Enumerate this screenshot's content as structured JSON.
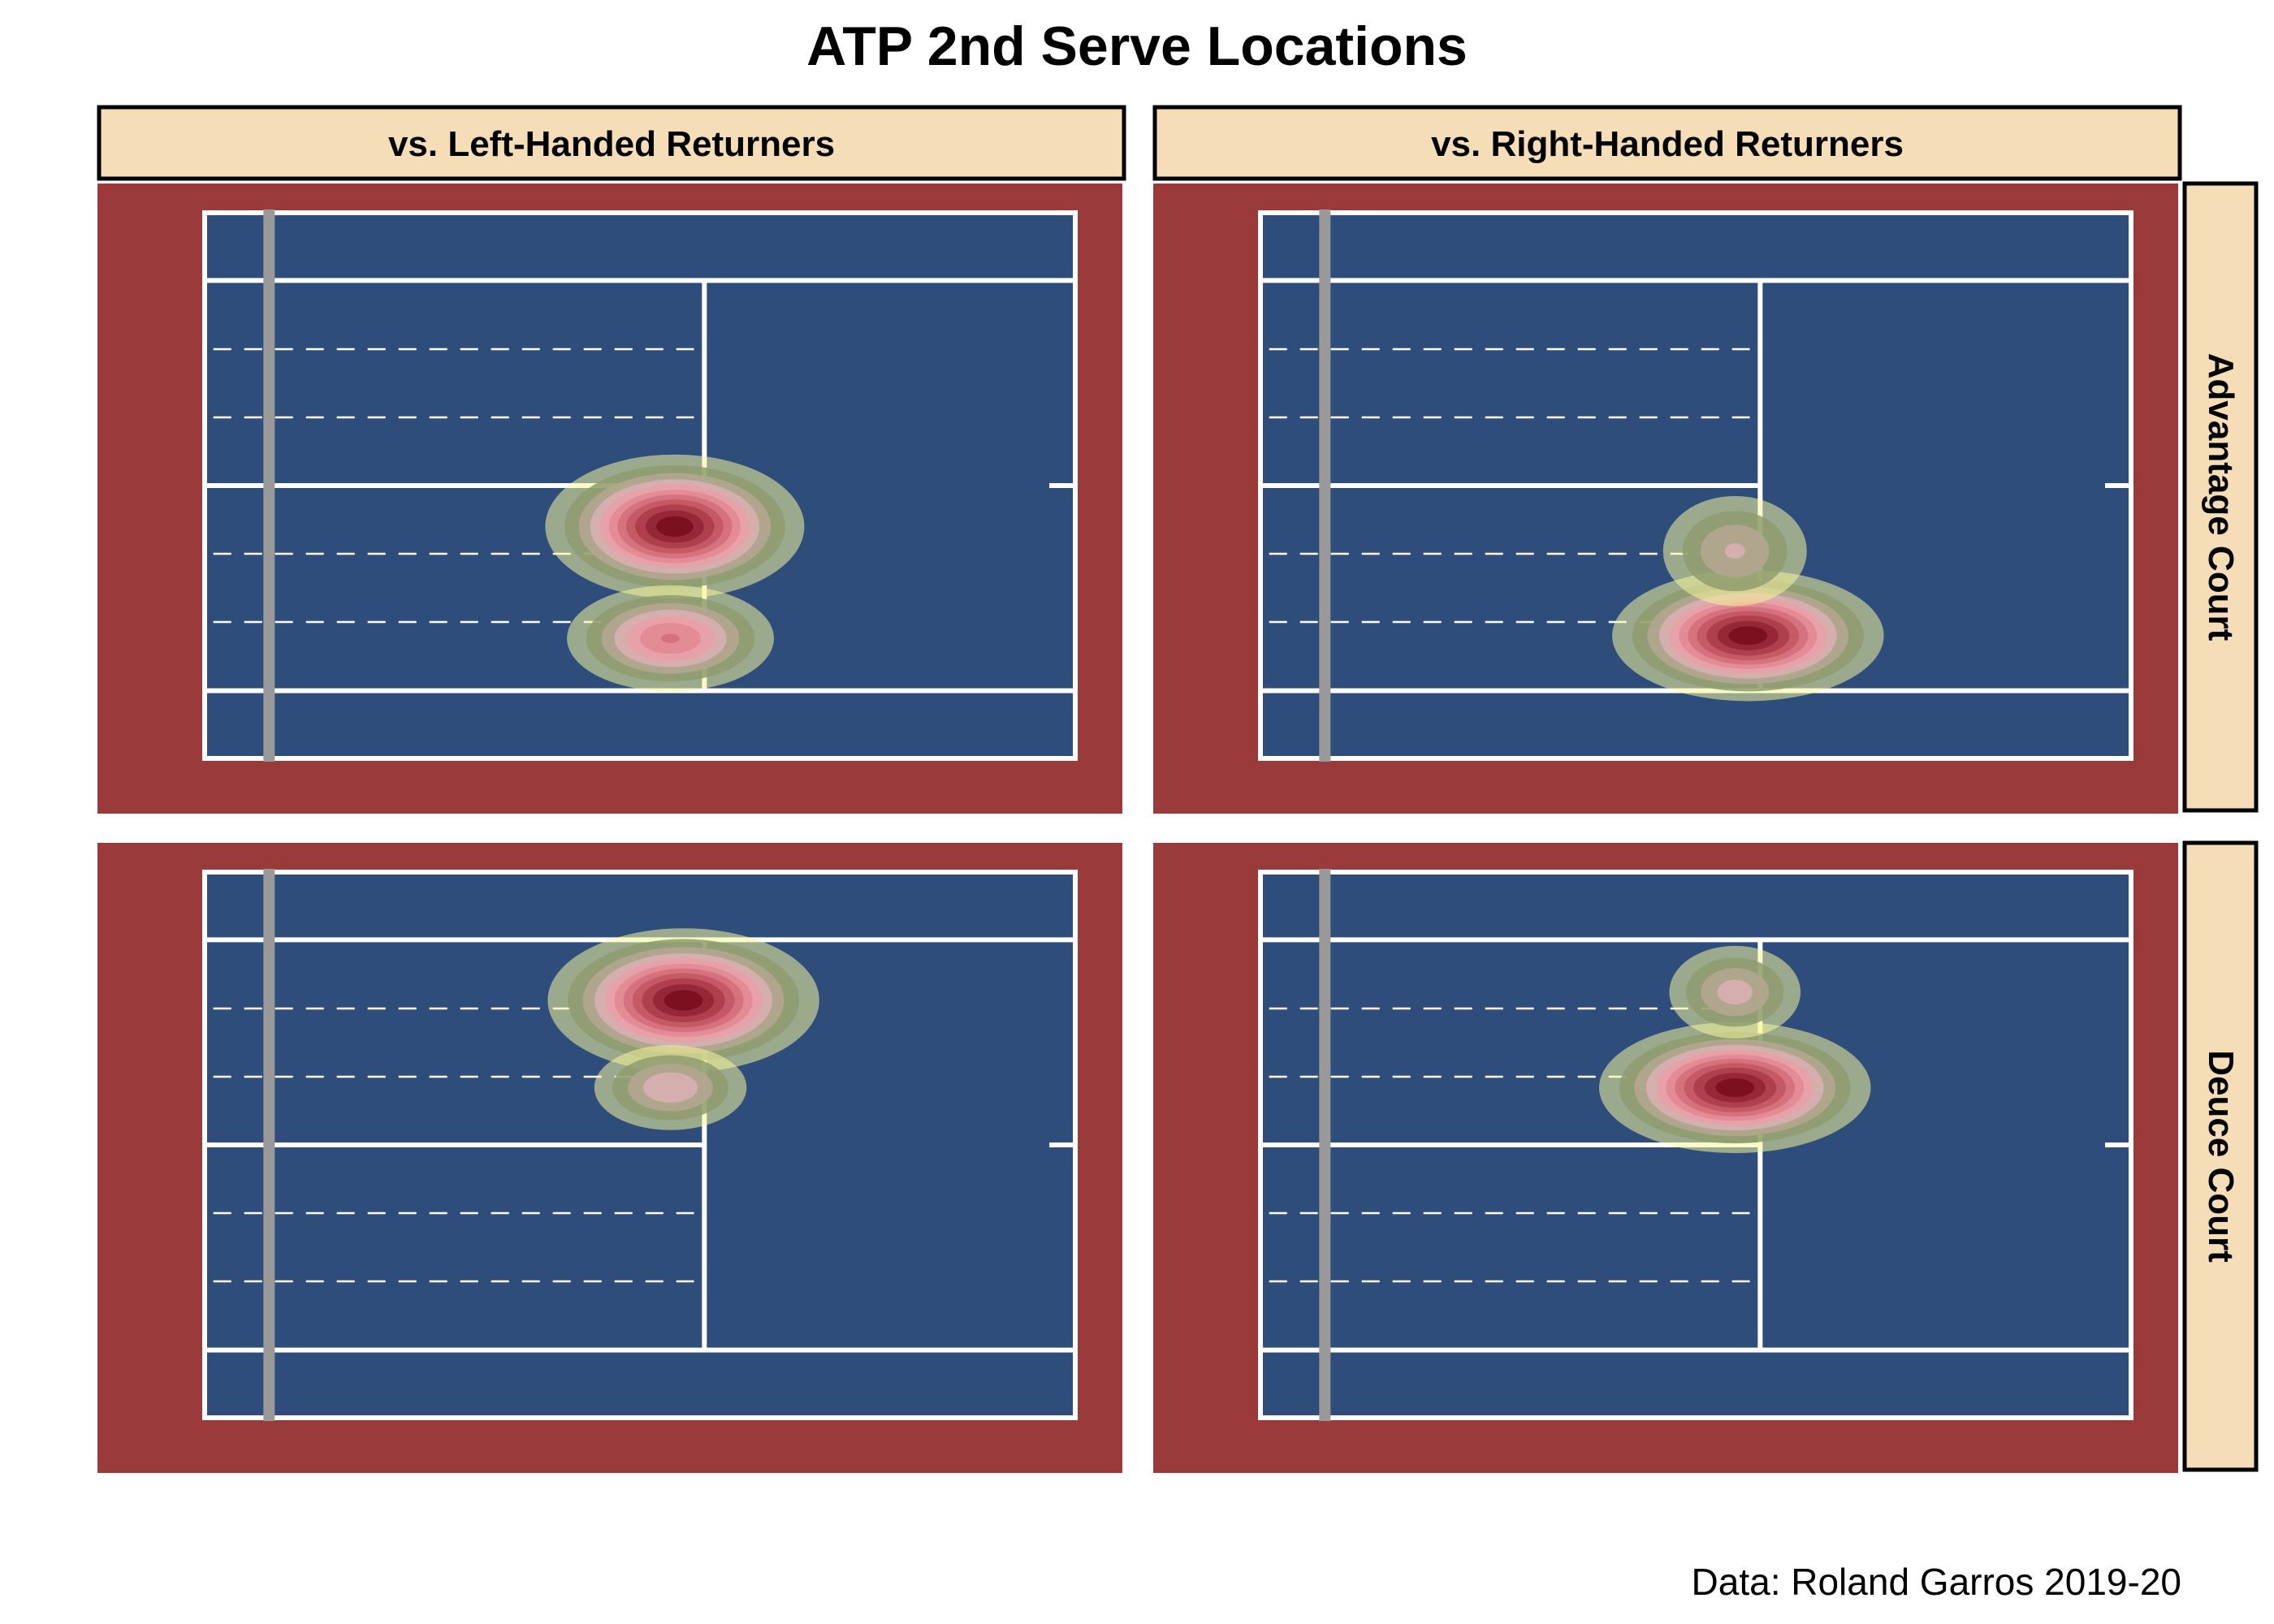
{
  "chart_data": {
    "type": "heatmap",
    "title": "ATP 2nd Serve Locations",
    "caption": "Data: Roland Garros 2019-20",
    "columns": [
      "vs. Left-Handed Returners",
      "vs. Right-Handed Returners"
    ],
    "rows": [
      "Advantage Court",
      "Deuce Court"
    ],
    "colors": {
      "background": "#ffffff",
      "surround": "#9b3a3a",
      "court": "#2e4d7a",
      "lines": "#ffffff",
      "net": "#999999",
      "strip_fill": "#f5deb7",
      "strip_border": "#000000",
      "density_ramp": [
        "#f5f59a",
        "#8f9c6e",
        "#b2a690",
        "#d9b0b0",
        "#e9a0a8",
        "#e28994",
        "#d46f7a",
        "#c35662",
        "#ad3c4a",
        "#942533",
        "#7a0e1c"
      ]
    },
    "panels": [
      {
        "row": "Advantage Court",
        "column": "vs. Left-Handed Returners",
        "clusters": [
          {
            "x": 0.54,
            "y": 0.575,
            "sx": 0.062,
            "sy": 0.055,
            "weight": 1.0
          },
          {
            "x": 0.535,
            "y": 0.78,
            "sx": 0.055,
            "sy": 0.045,
            "weight": 0.62
          }
        ]
      },
      {
        "row": "Advantage Court",
        "column": "vs. Right-Handed Returners",
        "clusters": [
          {
            "x": 0.56,
            "y": 0.775,
            "sx": 0.065,
            "sy": 0.05,
            "weight": 1.0
          },
          {
            "x": 0.545,
            "y": 0.62,
            "sx": 0.045,
            "sy": 0.055,
            "weight": 0.35
          }
        ]
      },
      {
        "row": "Deuce Court",
        "column": "vs. Left-Handed Returners",
        "clusters": [
          {
            "x": 0.55,
            "y": 0.235,
            "sx": 0.065,
            "sy": 0.055,
            "weight": 1.0
          },
          {
            "x": 0.535,
            "y": 0.395,
            "sx": 0.045,
            "sy": 0.04,
            "weight": 0.42
          }
        ]
      },
      {
        "row": "Deuce Court",
        "column": "vs. Right-Handed Returners",
        "clusters": [
          {
            "x": 0.545,
            "y": 0.395,
            "sx": 0.065,
            "sy": 0.05,
            "weight": 1.0
          },
          {
            "x": 0.545,
            "y": 0.22,
            "sx": 0.04,
            "sy": 0.045,
            "weight": 0.38
          }
        ]
      }
    ]
  }
}
